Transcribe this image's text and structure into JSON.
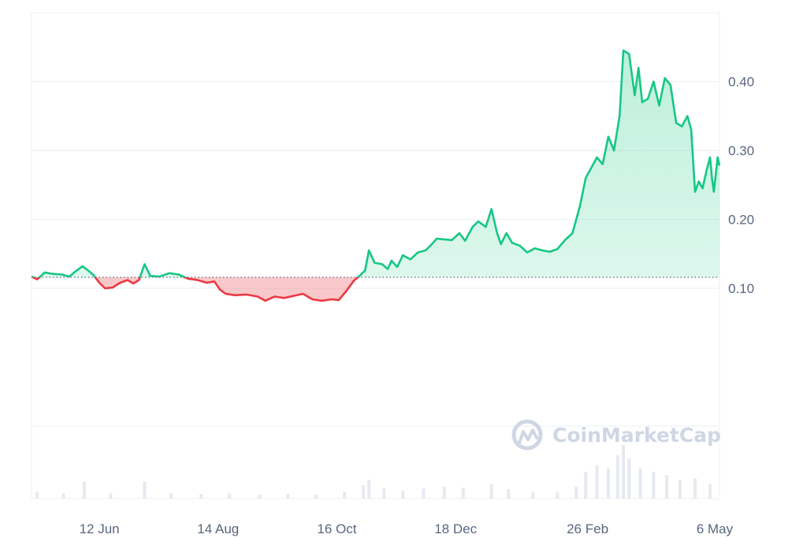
{
  "chart_data": {
    "type": "area",
    "title": "",
    "xlabel": "",
    "ylabel": "",
    "ylim": [
      -0.1,
      0.5
    ],
    "x_range": [
      "2023-05-07",
      "2024-05-06"
    ],
    "x_ticks": [
      {
        "date": "2023-06-12",
        "label": "12 Jun"
      },
      {
        "date": "2023-08-14",
        "label": "14 Aug"
      },
      {
        "date": "2023-10-16",
        "label": "16 Oct"
      },
      {
        "date": "2023-12-18",
        "label": "18 Dec"
      },
      {
        "date": "2024-02-26",
        "label": "26 Feb"
      },
      {
        "date": "2024-05-06",
        "label": "6 May"
      }
    ],
    "y_ticks": [
      {
        "value": 0.4,
        "label": "0.40"
      },
      {
        "value": 0.3,
        "label": "0.30"
      },
      {
        "value": 0.2,
        "label": "0.20"
      },
      {
        "value": 0.1,
        "label": "0.10"
      }
    ],
    "baseline": 0.116,
    "grid": true,
    "colors": {
      "above": "#16c784",
      "below": "#ea3943",
      "grid": "#eff2f5",
      "axis_text": "#58667e",
      "volume": "#e6eaf0",
      "watermark": "#cfd6e4"
    },
    "series": [
      {
        "values": [
          [
            "2023-05-07",
            0.117
          ],
          [
            "2023-05-10",
            0.113
          ],
          [
            "2023-05-14",
            0.123
          ],
          [
            "2023-05-18",
            0.121
          ],
          [
            "2023-05-23",
            0.12
          ],
          [
            "2023-05-27",
            0.117
          ],
          [
            "2023-05-31",
            0.126
          ],
          [
            "2023-06-03",
            0.132
          ],
          [
            "2023-06-06",
            0.126
          ],
          [
            "2023-06-09",
            0.119
          ],
          [
            "2023-06-12",
            0.108
          ],
          [
            "2023-06-15",
            0.1
          ],
          [
            "2023-06-19",
            0.101
          ],
          [
            "2023-06-23",
            0.108
          ],
          [
            "2023-06-27",
            0.112
          ],
          [
            "2023-06-30",
            0.107
          ],
          [
            "2023-07-03",
            0.112
          ],
          [
            "2023-07-06",
            0.135
          ],
          [
            "2023-07-09",
            0.118
          ],
          [
            "2023-07-14",
            0.117
          ],
          [
            "2023-07-19",
            0.122
          ],
          [
            "2023-07-24",
            0.12
          ],
          [
            "2023-07-29",
            0.114
          ],
          [
            "2023-08-03",
            0.112
          ],
          [
            "2023-08-08",
            0.108
          ],
          [
            "2023-08-12",
            0.11
          ],
          [
            "2023-08-15",
            0.098
          ],
          [
            "2023-08-18",
            0.092
          ],
          [
            "2023-08-23",
            0.09
          ],
          [
            "2023-08-29",
            0.091
          ],
          [
            "2023-09-04",
            0.088
          ],
          [
            "2023-09-08",
            0.082
          ],
          [
            "2023-09-13",
            0.088
          ],
          [
            "2023-09-18",
            0.086
          ],
          [
            "2023-09-23",
            0.089
          ],
          [
            "2023-09-28",
            0.092
          ],
          [
            "2023-10-03",
            0.084
          ],
          [
            "2023-10-08",
            0.082
          ],
          [
            "2023-10-13",
            0.084
          ],
          [
            "2023-10-17",
            0.083
          ],
          [
            "2023-10-21",
            0.096
          ],
          [
            "2023-10-25",
            0.111
          ],
          [
            "2023-10-28",
            0.118
          ],
          [
            "2023-10-31",
            0.126
          ],
          [
            "2023-11-02",
            0.155
          ],
          [
            "2023-11-05",
            0.137
          ],
          [
            "2023-11-09",
            0.135
          ],
          [
            "2023-11-12",
            0.128
          ],
          [
            "2023-11-14",
            0.14
          ],
          [
            "2023-11-17",
            0.131
          ],
          [
            "2023-11-20",
            0.148
          ],
          [
            "2023-11-24",
            0.142
          ],
          [
            "2023-11-28",
            0.152
          ],
          [
            "2023-12-02",
            0.155
          ],
          [
            "2023-12-05",
            0.163
          ],
          [
            "2023-12-08",
            0.172
          ],
          [
            "2023-12-12",
            0.171
          ],
          [
            "2023-12-16",
            0.17
          ],
          [
            "2023-12-20",
            0.18
          ],
          [
            "2023-12-23",
            0.169
          ],
          [
            "2023-12-27",
            0.189
          ],
          [
            "2023-12-30",
            0.197
          ],
          [
            "2024-01-03",
            0.189
          ],
          [
            "2024-01-06",
            0.215
          ],
          [
            "2024-01-09",
            0.18
          ],
          [
            "2024-01-11",
            0.164
          ],
          [
            "2024-01-14",
            0.18
          ],
          [
            "2024-01-17",
            0.166
          ],
          [
            "2024-01-21",
            0.162
          ],
          [
            "2024-01-25",
            0.152
          ],
          [
            "2024-01-29",
            0.158
          ],
          [
            "2024-02-02",
            0.155
          ],
          [
            "2024-02-06",
            0.153
          ],
          [
            "2024-02-10",
            0.157
          ],
          [
            "2024-02-14",
            0.17
          ],
          [
            "2024-02-18",
            0.18
          ],
          [
            "2024-02-22",
            0.22
          ],
          [
            "2024-02-25",
            0.26
          ],
          [
            "2024-02-28",
            0.275
          ],
          [
            "2024-03-02",
            0.29
          ],
          [
            "2024-03-05",
            0.28
          ],
          [
            "2024-03-08",
            0.32
          ],
          [
            "2024-03-11",
            0.3
          ],
          [
            "2024-03-14",
            0.35
          ],
          [
            "2024-03-16",
            0.445
          ],
          [
            "2024-03-19",
            0.44
          ],
          [
            "2024-03-22",
            0.38
          ],
          [
            "2024-03-24",
            0.42
          ],
          [
            "2024-03-26",
            0.37
          ],
          [
            "2024-03-29",
            0.375
          ],
          [
            "2024-04-01",
            0.4
          ],
          [
            "2024-04-04",
            0.365
          ],
          [
            "2024-04-07",
            0.405
          ],
          [
            "2024-04-10",
            0.395
          ],
          [
            "2024-04-13",
            0.34
          ],
          [
            "2024-04-16",
            0.335
          ],
          [
            "2024-04-19",
            0.35
          ],
          [
            "2024-04-21",
            0.33
          ],
          [
            "2024-04-23",
            0.24
          ],
          [
            "2024-04-25",
            0.255
          ],
          [
            "2024-04-27",
            0.245
          ],
          [
            "2024-04-29",
            0.27
          ],
          [
            "2024-05-01",
            0.29
          ],
          [
            "2024-05-02",
            0.26
          ],
          [
            "2024-05-03",
            0.24
          ],
          [
            "2024-05-04",
            0.265
          ],
          [
            "2024-05-05",
            0.29
          ],
          [
            "2024-05-06",
            0.278
          ]
        ]
      }
    ],
    "volume": [
      [
        "2023-05-10",
        0.1
      ],
      [
        "2023-05-24",
        0.08
      ],
      [
        "2023-06-04",
        0.25
      ],
      [
        "2023-06-18",
        0.08
      ],
      [
        "2023-07-06",
        0.25
      ],
      [
        "2023-07-20",
        0.08
      ],
      [
        "2023-08-05",
        0.07
      ],
      [
        "2023-08-20",
        0.08
      ],
      [
        "2023-09-05",
        0.06
      ],
      [
        "2023-09-20",
        0.07
      ],
      [
        "2023-10-05",
        0.06
      ],
      [
        "2023-10-20",
        0.1
      ],
      [
        "2023-10-30",
        0.2
      ],
      [
        "2023-11-02",
        0.28
      ],
      [
        "2023-11-10",
        0.15
      ],
      [
        "2023-11-20",
        0.12
      ],
      [
        "2023-12-01",
        0.15
      ],
      [
        "2023-12-12",
        0.18
      ],
      [
        "2023-12-22",
        0.16
      ],
      [
        "2024-01-06",
        0.22
      ],
      [
        "2024-01-15",
        0.14
      ],
      [
        "2024-01-28",
        0.1
      ],
      [
        "2024-02-10",
        0.1
      ],
      [
        "2024-02-20",
        0.18
      ],
      [
        "2024-02-25",
        0.4
      ],
      [
        "2024-03-02",
        0.5
      ],
      [
        "2024-03-08",
        0.45
      ],
      [
        "2024-03-13",
        0.65
      ],
      [
        "2024-03-16",
        0.8
      ],
      [
        "2024-03-19",
        0.6
      ],
      [
        "2024-03-25",
        0.45
      ],
      [
        "2024-04-01",
        0.4
      ],
      [
        "2024-04-08",
        0.35
      ],
      [
        "2024-04-15",
        0.28
      ],
      [
        "2024-04-23",
        0.3
      ],
      [
        "2024-05-01",
        0.22
      ]
    ]
  },
  "watermark": {
    "text": "CoinMarketCap"
  }
}
